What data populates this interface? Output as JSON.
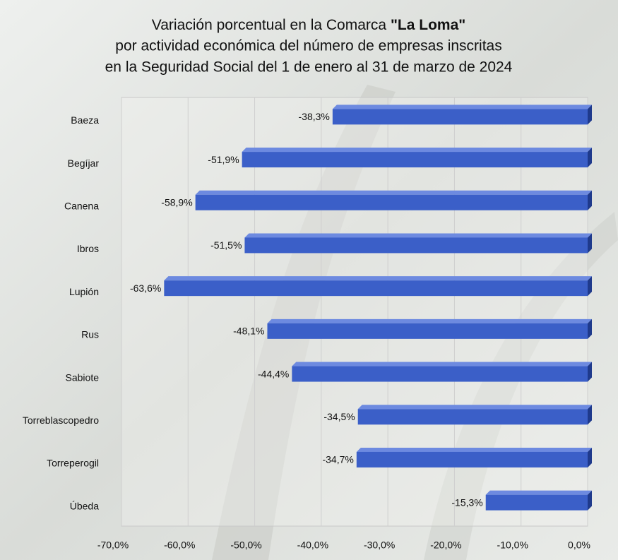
{
  "chart_data": {
    "type": "bar",
    "orientation": "horizontal",
    "title": [
      "Variación porcentual en la Comarca",
      "por actividad económica del número de empresas inscritas",
      "en la Seguridad Social del 1 de enero al 31 de marzo de 2024"
    ],
    "title_bold": "\"La Loma\"",
    "categories": [
      "Baeza",
      "Begíjar",
      "Canena",
      "Ibros",
      "Lupión",
      "Rus",
      "Sabiote",
      "Torreblascopedro",
      "Torreperogil",
      "Úbeda"
    ],
    "values": [
      -38.3,
      -51.9,
      -58.9,
      -51.5,
      -63.6,
      -48.1,
      -44.4,
      -34.5,
      -34.7,
      -15.3
    ],
    "value_labels": [
      "-38,3%",
      "-51,9%",
      "-58,9%",
      "-51,5%",
      "-63,6%",
      "-48,1%",
      "-44,4%",
      "-34,5%",
      "-34,7%",
      "-15,3%"
    ],
    "color": "#3b5fc8",
    "xlim": [
      -70,
      0
    ],
    "xticks": [
      {
        "value": -70,
        "label": "-70,0%"
      },
      {
        "value": -60,
        "label": "-60,0%"
      },
      {
        "value": -50,
        "label": "-50,0%"
      },
      {
        "value": -40,
        "label": "-40,0%"
      },
      {
        "value": -30,
        "label": "-30,0%"
      },
      {
        "value": -20,
        "label": "-20,0%"
      },
      {
        "value": -10,
        "label": "-10,0%"
      },
      {
        "value": 0,
        "label": "0,0%"
      }
    ],
    "grid": true
  }
}
